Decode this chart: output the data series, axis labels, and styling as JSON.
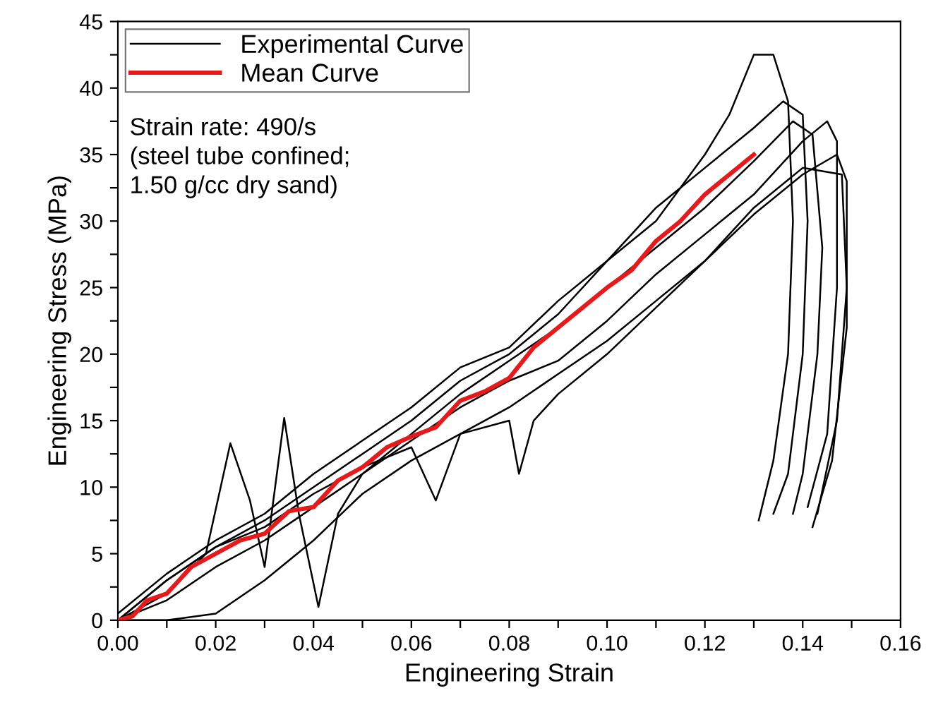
{
  "chart_data": {
    "type": "line",
    "xlabel": "Engineering Strain",
    "ylabel": "Engineering Stress (MPa)",
    "xlim": [
      0,
      0.16
    ],
    "ylim": [
      0,
      45
    ],
    "xticks": [
      {
        "value": 0,
        "label": "0.00"
      },
      {
        "value": 0.01,
        "label": null
      },
      {
        "value": 0.02,
        "label": "0.02"
      },
      {
        "value": 0.03,
        "label": null
      },
      {
        "value": 0.04,
        "label": "0.04"
      },
      {
        "value": 0.05,
        "label": null
      },
      {
        "value": 0.06,
        "label": "0.06"
      },
      {
        "value": 0.07,
        "label": null
      },
      {
        "value": 0.08,
        "label": "0.08"
      },
      {
        "value": 0.09,
        "label": null
      },
      {
        "value": 0.1,
        "label": "0.10"
      },
      {
        "value": 0.11,
        "label": null
      },
      {
        "value": 0.12,
        "label": "0.12"
      },
      {
        "value": 0.13,
        "label": null
      },
      {
        "value": 0.14,
        "label": "0.14"
      },
      {
        "value": 0.15,
        "label": null
      },
      {
        "value": 0.16,
        "label": "0.16"
      }
    ],
    "yticks": [
      0,
      {
        "value": 2.5,
        "label": null
      },
      5,
      {
        "value": 7.5,
        "label": null
      },
      10,
      {
        "value": 12.5,
        "label": null
      },
      15,
      {
        "value": 17.5,
        "label": null
      },
      20,
      {
        "value": 22.5,
        "label": null
      },
      25,
      {
        "value": 27.5,
        "label": null
      },
      30,
      {
        "value": 32.5,
        "label": null
      },
      35,
      {
        "value": 37.5,
        "label": null
      },
      40,
      {
        "value": 42.5,
        "label": null
      },
      45
    ],
    "grid": false,
    "legend": "top left",
    "line_style": "solid",
    "annotations": [
      "Strain rate: 490/s\n(steel tube confined;\n1.50 g/cc dry sand)"
    ],
    "series": [
      {
        "name": "Experimental Curve",
        "color": "#000000",
        "x": [
          0,
          0.01,
          0.02,
          0.03,
          0.04,
          0.05,
          0.06,
          0.07,
          0.08,
          0.09,
          0.1,
          0.11,
          0.12,
          0.125,
          0.13,
          0.134,
          0.137,
          0.138,
          0.137,
          0.134,
          0.131
        ],
        "values": [
          0,
          3,
          5.5,
          7.5,
          10,
          12.5,
          15,
          18,
          20,
          23,
          27,
          30,
          35,
          38,
          42.5,
          42.5,
          39,
          30,
          20,
          12,
          7.5
        ]
      },
      {
        "color": "#000000",
        "x": [
          0,
          0.01,
          0.018,
          0.023,
          0.027,
          0.03,
          0.034,
          0.037,
          0.041,
          0.045,
          0.05,
          0.06,
          0.07,
          0.08,
          0.09,
          0.1,
          0.11,
          0.12,
          0.13,
          0.138,
          0.142,
          0.144,
          0.143,
          0.14,
          0.138
        ],
        "values": [
          0,
          2,
          5,
          13.3,
          9,
          4,
          15.2,
          8,
          1,
          8,
          11,
          14,
          17,
          19.5,
          22,
          25,
          28,
          31,
          34.5,
          37.5,
          36.5,
          28,
          20,
          11,
          8
        ]
      },
      {
        "color": "#000000",
        "x": [
          0,
          0.01,
          0.02,
          0.03,
          0.04,
          0.05,
          0.06,
          0.07,
          0.08,
          0.09,
          0.1,
          0.11,
          0.12,
          0.13,
          0.14,
          0.147,
          0.149,
          0.149,
          0.146,
          0.142
        ],
        "values": [
          0,
          0,
          0.5,
          3,
          6,
          9.5,
          12,
          14,
          16,
          18.5,
          21,
          24,
          27,
          30.5,
          33.5,
          35,
          33,
          22,
          12,
          7
        ]
      },
      {
        "color": "#000000",
        "x": [
          0,
          0.01,
          0.02,
          0.03,
          0.04,
          0.05,
          0.06,
          0.065,
          0.07,
          0.08,
          0.082,
          0.085,
          0.09,
          0.1,
          0.11,
          0.12,
          0.13,
          0.14,
          0.148,
          0.149,
          0.147,
          0.143
        ],
        "values": [
          0,
          3,
          5.5,
          7,
          9.5,
          11.5,
          13,
          9,
          14,
          15,
          11,
          15,
          17,
          20,
          23.5,
          27,
          31,
          34,
          33.5,
          25,
          15,
          8
        ]
      },
      {
        "color": "#000000",
        "x": [
          0,
          0.01,
          0.02,
          0.03,
          0.04,
          0.05,
          0.06,
          0.07,
          0.08,
          0.09,
          0.1,
          0.11,
          0.12,
          0.13,
          0.136,
          0.14,
          0.141,
          0.14,
          0.137,
          0.134
        ],
        "values": [
          0.5,
          3.5,
          6,
          8,
          11,
          13.5,
          16,
          19,
          20.5,
          24,
          27,
          31,
          34,
          37,
          39,
          38,
          30,
          20,
          11,
          8
        ]
      },
      {
        "color": "#000000",
        "x": [
          0,
          0.01,
          0.02,
          0.03,
          0.04,
          0.05,
          0.06,
          0.07,
          0.08,
          0.09,
          0.1,
          0.11,
          0.12,
          0.13,
          0.14,
          0.145,
          0.147,
          0.147,
          0.145,
          0.141
        ],
        "values": [
          0,
          1.5,
          4,
          6,
          8.5,
          11,
          13.5,
          16,
          18,
          19.5,
          22.5,
          26,
          29,
          32,
          36,
          37.5,
          36,
          25,
          14,
          8.5
        ]
      },
      {
        "name": "Mean Curve",
        "color": "#e41a1c",
        "x": [
          0,
          0.003,
          0.006,
          0.01,
          0.015,
          0.02,
          0.025,
          0.03,
          0.035,
          0.04,
          0.045,
          0.05,
          0.055,
          0.06,
          0.065,
          0.07,
          0.075,
          0.08,
          0.085,
          0.09,
          0.095,
          0.1,
          0.105,
          0.11,
          0.115,
          0.12,
          0.125,
          0.13
        ],
        "values": [
          0,
          0.3,
          1.5,
          2,
          4,
          5,
          6,
          6.5,
          8.2,
          8.5,
          10.5,
          11.5,
          13,
          13.8,
          14.5,
          16.5,
          17.2,
          18.2,
          20.5,
          22,
          23.5,
          25,
          26.3,
          28.5,
          30,
          32,
          33.5,
          35
        ]
      }
    ]
  }
}
